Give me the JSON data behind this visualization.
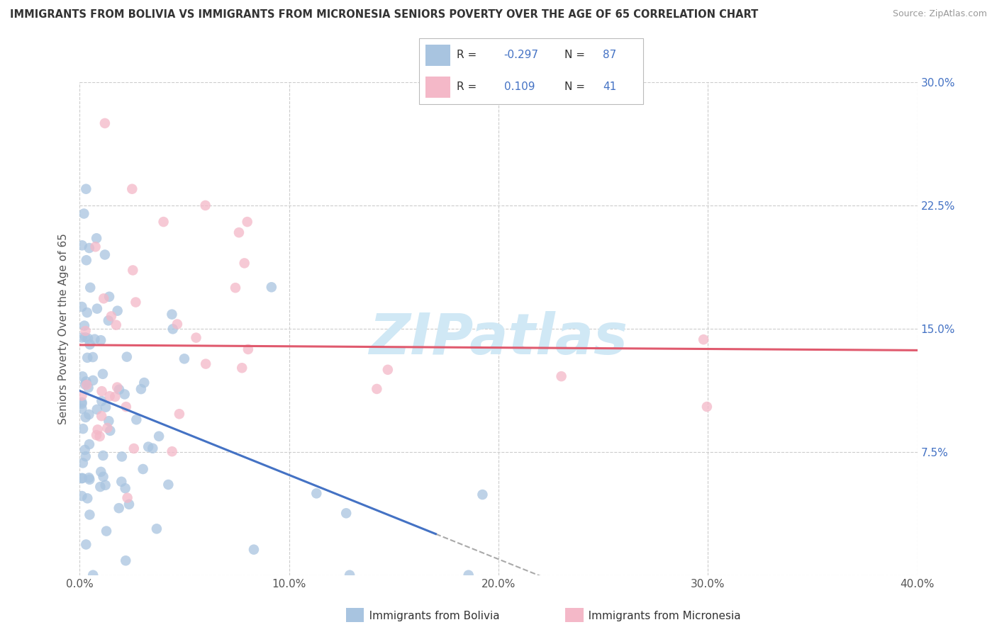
{
  "title": "IMMIGRANTS FROM BOLIVIA VS IMMIGRANTS FROM MICRONESIA SENIORS POVERTY OVER THE AGE OF 65 CORRELATION CHART",
  "source": "Source: ZipAtlas.com",
  "ylabel": "Seniors Poverty Over the Age of 65",
  "xlabel_bolivia": "Immigrants from Bolivia",
  "xlabel_micronesia": "Immigrants from Micronesia",
  "bolivia_R": -0.297,
  "bolivia_N": 87,
  "micronesia_R": 0.109,
  "micronesia_N": 41,
  "xlim": [
    0.0,
    0.4
  ],
  "ylim": [
    0.0,
    0.3
  ],
  "xticks": [
    0.0,
    0.1,
    0.2,
    0.3,
    0.4
  ],
  "yticks": [
    0.0,
    0.075,
    0.15,
    0.225,
    0.3
  ],
  "bolivia_color": "#a8c4e0",
  "micronesia_color": "#f4b8c8",
  "bolivia_line_color": "#4472c4",
  "micronesia_line_color": "#e05a6e",
  "background_color": "#ffffff",
  "grid_color": "#cccccc",
  "watermark_color": "#d0e8f5",
  "title_color": "#333333",
  "source_color": "#999999",
  "tick_color": "#555555",
  "right_tick_color": "#4472c4"
}
